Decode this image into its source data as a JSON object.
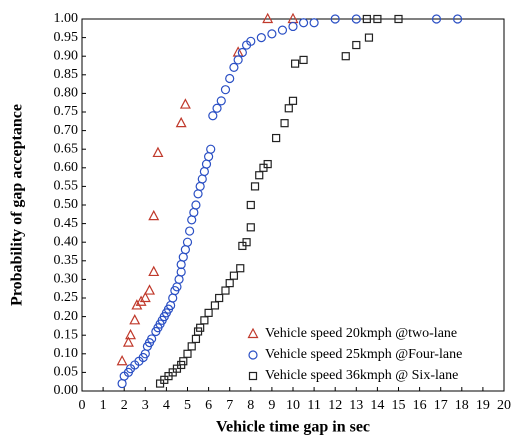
{
  "chart_data": {
    "type": "scatter",
    "x_label": "Vehicle time gap in sec",
    "y_label": "Probability of gap acceptance",
    "xlim": [
      0,
      20
    ],
    "ylim": [
      0,
      1
    ],
    "xticks": [
      0,
      1,
      2,
      3,
      4,
      5,
      6,
      7,
      8,
      9,
      10,
      11,
      12,
      13,
      14,
      15,
      16,
      17,
      18,
      19,
      20
    ],
    "yticks": [
      {
        "value": 0,
        "label": "0.00"
      },
      0.05,
      {
        "value": 0.1,
        "label": "0.10"
      },
      0.15,
      {
        "value": 0.2,
        "label": "0.20"
      },
      0.25,
      {
        "value": 0.3,
        "label": "0.30"
      },
      0.35,
      {
        "value": 0.4,
        "label": "0.40"
      },
      0.45,
      {
        "value": 0.5,
        "label": "0.50"
      },
      0.55,
      {
        "value": 0.6,
        "label": "0.60"
      },
      0.65,
      {
        "value": 0.7,
        "label": "0.70"
      },
      0.75,
      {
        "value": 0.8,
        "label": "0.80"
      },
      0.85,
      {
        "value": 0.9,
        "label": "0.90"
      },
      0.95,
      {
        "value": 1,
        "label": "1.00"
      }
    ],
    "legend": "lower right",
    "series": [
      {
        "name": "Vehicle speed 20kmph @two-lane",
        "color": "#c0392b",
        "marker": "triangle",
        "x": [
          1.9,
          2.2,
          2.3,
          2.5,
          2.6,
          2.8,
          3.0,
          3.2,
          3.4,
          3.4,
          3.6,
          4.7,
          4.9,
          7.4,
          8.8,
          10.0
        ],
        "values": [
          0.08,
          0.13,
          0.15,
          0.19,
          0.23,
          0.24,
          0.25,
          0.27,
          0.32,
          0.47,
          0.64,
          0.72,
          0.77,
          0.91,
          1.0,
          1.0
        ]
      },
      {
        "name": "Vehicle speed 25kmph @Four-lane",
        "color": "#2a4fc4",
        "marker": "circle",
        "x": [
          1.9,
          2.0,
          2.2,
          2.3,
          2.5,
          2.7,
          2.9,
          3.0,
          3.1,
          3.2,
          3.3,
          3.5,
          3.6,
          3.7,
          3.8,
          3.9,
          4.0,
          4.1,
          4.2,
          4.3,
          4.4,
          4.5,
          4.6,
          4.7,
          4.7,
          4.8,
          4.9,
          5.0,
          5.1,
          5.2,
          5.3,
          5.4,
          5.5,
          5.6,
          5.7,
          5.8,
          5.9,
          6.0,
          6.1,
          6.2,
          6.4,
          6.6,
          6.8,
          7.0,
          7.2,
          7.4,
          7.6,
          7.8,
          8.0,
          8.5,
          9.0,
          9.5,
          10.0,
          10.5,
          11.0,
          12.0,
          13.0,
          16.8,
          17.8
        ],
        "values": [
          0.02,
          0.04,
          0.05,
          0.06,
          0.07,
          0.08,
          0.09,
          0.1,
          0.12,
          0.13,
          0.14,
          0.16,
          0.17,
          0.18,
          0.19,
          0.2,
          0.21,
          0.22,
          0.23,
          0.25,
          0.27,
          0.28,
          0.3,
          0.32,
          0.34,
          0.36,
          0.38,
          0.4,
          0.43,
          0.46,
          0.48,
          0.5,
          0.53,
          0.55,
          0.57,
          0.59,
          0.61,
          0.63,
          0.65,
          0.74,
          0.76,
          0.78,
          0.81,
          0.84,
          0.87,
          0.89,
          0.91,
          0.93,
          0.94,
          0.95,
          0.96,
          0.97,
          0.98,
          0.99,
          0.99,
          1.0,
          1.0,
          1.0,
          1.0
        ]
      },
      {
        "name": "Vehicle speed 36kmph @ Six-lane",
        "color": "#222222",
        "marker": "square",
        "x": [
          3.7,
          3.9,
          4.1,
          4.3,
          4.5,
          4.7,
          4.8,
          5.0,
          5.2,
          5.4,
          5.5,
          5.6,
          5.8,
          6.0,
          6.3,
          6.5,
          6.8,
          7.0,
          7.2,
          7.5,
          7.6,
          7.8,
          8.0,
          8.0,
          8.2,
          8.4,
          8.6,
          8.8,
          9.2,
          9.6,
          9.8,
          10.0,
          10.1,
          10.5,
          12.5,
          13.0,
          13.6,
          13.5,
          14.0,
          15.0
        ],
        "values": [
          0.02,
          0.03,
          0.04,
          0.05,
          0.06,
          0.07,
          0.08,
          0.1,
          0.12,
          0.14,
          0.16,
          0.17,
          0.19,
          0.21,
          0.23,
          0.25,
          0.27,
          0.29,
          0.31,
          0.33,
          0.39,
          0.4,
          0.44,
          0.5,
          0.55,
          0.58,
          0.6,
          0.61,
          0.68,
          0.72,
          0.76,
          0.78,
          0.88,
          0.89,
          0.9,
          0.93,
          0.95,
          1.0,
          1.0,
          1.0
        ]
      }
    ]
  }
}
